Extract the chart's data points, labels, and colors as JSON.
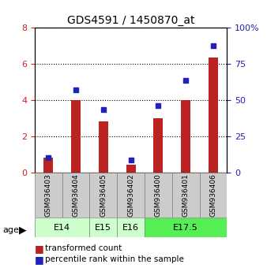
{
  "title": "GDS4591 / 1450870_at",
  "samples": [
    "GSM936403",
    "GSM936404",
    "GSM936405",
    "GSM936402",
    "GSM936400",
    "GSM936401",
    "GSM936406"
  ],
  "transformed_count": [
    0.85,
    4.0,
    2.85,
    0.45,
    3.0,
    4.0,
    6.35
  ],
  "percentile_rank": [
    10.5,
    57.5,
    43.75,
    8.75,
    46.25,
    63.75,
    87.5
  ],
  "age_groups": [
    {
      "label": "E14",
      "start": 0,
      "end": 2,
      "color": "#ccffcc"
    },
    {
      "label": "E15",
      "start": 2,
      "end": 3,
      "color": "#ccffcc"
    },
    {
      "label": "E16",
      "start": 3,
      "end": 4,
      "color": "#ccffcc"
    },
    {
      "label": "E17.5",
      "start": 4,
      "end": 7,
      "color": "#55ee55"
    }
  ],
  "bar_color": "#bb2222",
  "dot_color": "#2222bb",
  "ylim_left": [
    0,
    8
  ],
  "ylim_right": [
    0,
    100
  ],
  "yticks_left": [
    0,
    2,
    4,
    6,
    8
  ],
  "yticks_right": [
    0,
    25,
    50,
    75,
    100
  ],
  "grid_color": "#000000",
  "bg_color": "#ffffff",
  "tick_area_bg": "#cccccc",
  "legend_items": [
    {
      "label": "transformed count",
      "color": "#bb2222",
      "marker": "s"
    },
    {
      "label": "percentile rank within the sample",
      "color": "#2222bb",
      "marker": "s"
    }
  ]
}
